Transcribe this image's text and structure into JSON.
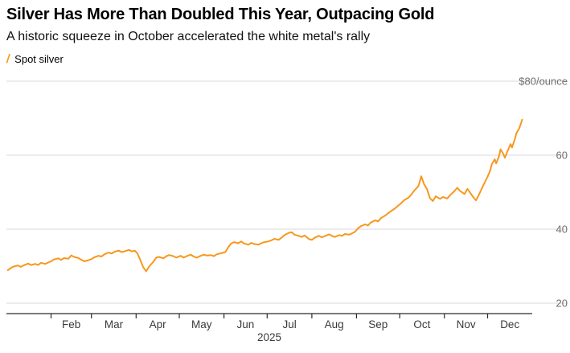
{
  "header": {
    "title": "Silver Has More Than Doubled This Year, Outpacing Gold",
    "subtitle": "A historic squeeze in October accelerated the white metal's rally"
  },
  "legend": {
    "marker": "/",
    "label": "Spot silver"
  },
  "colors": {
    "line": "#F7981D",
    "grid": "#D9D9D9",
    "axis_text": "#6E6E6E",
    "month_text": "#3A3A3A",
    "baseline": "#2B2B2B"
  },
  "chart_data": {
    "type": "line",
    "title": "Silver Has More Than Doubled This Year, Outpacing Gold",
    "subtitle": "A historic squeeze in October accelerated the white metal's rally",
    "unit": "$/ounce",
    "legend": [
      "Spot silver"
    ],
    "y_ticks": [
      {
        "value": 20,
        "label": "20"
      },
      {
        "value": 40,
        "label": "40"
      },
      {
        "value": 60,
        "label": "60"
      },
      {
        "value": 80,
        "label": "$80/ounce"
      }
    ],
    "ylim": [
      17.2,
      84
    ],
    "x_domain_days": [
      0,
      365
    ],
    "x_tick_days": [
      31,
      59,
      90,
      120,
      151,
      181,
      212,
      243,
      273,
      304,
      334
    ],
    "x_labels": [
      "Feb",
      "Mar",
      "Apr",
      "May",
      "Jun",
      "Jul",
      "Aug",
      "Sep",
      "Oct",
      "Nov",
      "Dec"
    ],
    "year_label": "2025",
    "series": [
      {
        "name": "Spot silver",
        "points": [
          [
            1,
            28.9
          ],
          [
            3,
            29.5
          ],
          [
            5,
            29.9
          ],
          [
            8,
            30.2
          ],
          [
            10,
            29.8
          ],
          [
            13,
            30.4
          ],
          [
            15,
            30.7
          ],
          [
            17,
            30.3
          ],
          [
            20,
            30.6
          ],
          [
            22,
            30.3
          ],
          [
            24,
            30.9
          ],
          [
            27,
            30.6
          ],
          [
            29,
            31.0
          ],
          [
            31,
            31.3
          ],
          [
            33,
            31.8
          ],
          [
            36,
            32.1
          ],
          [
            38,
            31.7
          ],
          [
            40,
            32.2
          ],
          [
            43,
            32.0
          ],
          [
            45,
            32.9
          ],
          [
            47,
            32.5
          ],
          [
            50,
            32.2
          ],
          [
            52,
            31.7
          ],
          [
            54,
            31.3
          ],
          [
            57,
            31.6
          ],
          [
            59,
            31.9
          ],
          [
            61,
            32.4
          ],
          [
            64,
            32.8
          ],
          [
            66,
            32.6
          ],
          [
            68,
            33.2
          ],
          [
            71,
            33.7
          ],
          [
            73,
            33.4
          ],
          [
            75,
            33.9
          ],
          [
            78,
            34.2
          ],
          [
            80,
            33.8
          ],
          [
            82,
            34.0
          ],
          [
            85,
            34.4
          ],
          [
            87,
            34.0
          ],
          [
            89,
            34.2
          ],
          [
            91,
            33.4
          ],
          [
            93,
            31.6
          ],
          [
            95,
            29.7
          ],
          [
            97,
            28.6
          ],
          [
            99,
            29.9
          ],
          [
            102,
            31.2
          ],
          [
            104,
            32.3
          ],
          [
            106,
            32.5
          ],
          [
            109,
            32.1
          ],
          [
            111,
            32.7
          ],
          [
            113,
            33.0
          ],
          [
            116,
            32.7
          ],
          [
            118,
            32.3
          ],
          [
            121,
            32.8
          ],
          [
            123,
            32.3
          ],
          [
            125,
            32.7
          ],
          [
            128,
            33.1
          ],
          [
            130,
            32.6
          ],
          [
            132,
            32.3
          ],
          [
            135,
            32.8
          ],
          [
            137,
            33.1
          ],
          [
            139,
            32.9
          ],
          [
            142,
            33.0
          ],
          [
            144,
            32.7
          ],
          [
            146,
            33.2
          ],
          [
            149,
            33.5
          ],
          [
            152,
            33.8
          ],
          [
            154,
            35.1
          ],
          [
            156,
            36.1
          ],
          [
            158,
            36.5
          ],
          [
            161,
            36.2
          ],
          [
            163,
            36.7
          ],
          [
            165,
            36.1
          ],
          [
            168,
            35.8
          ],
          [
            170,
            36.3
          ],
          [
            172,
            36.0
          ],
          [
            175,
            35.8
          ],
          [
            177,
            36.2
          ],
          [
            179,
            36.5
          ],
          [
            182,
            36.7
          ],
          [
            184,
            37.0
          ],
          [
            186,
            37.4
          ],
          [
            189,
            37.1
          ],
          [
            191,
            37.7
          ],
          [
            193,
            38.4
          ],
          [
            196,
            39.0
          ],
          [
            198,
            39.2
          ],
          [
            200,
            38.5
          ],
          [
            203,
            38.2
          ],
          [
            205,
            37.9
          ],
          [
            207,
            38.3
          ],
          [
            210,
            37.3
          ],
          [
            212,
            37.1
          ],
          [
            214,
            37.7
          ],
          [
            217,
            38.2
          ],
          [
            219,
            37.8
          ],
          [
            221,
            38.1
          ],
          [
            224,
            38.6
          ],
          [
            226,
            38.2
          ],
          [
            228,
            37.9
          ],
          [
            231,
            38.4
          ],
          [
            233,
            38.2
          ],
          [
            235,
            38.7
          ],
          [
            238,
            38.5
          ],
          [
            240,
            38.9
          ],
          [
            242,
            39.3
          ],
          [
            244,
            40.2
          ],
          [
            246,
            40.8
          ],
          [
            249,
            41.3
          ],
          [
            251,
            41.0
          ],
          [
            253,
            41.8
          ],
          [
            256,
            42.4
          ],
          [
            258,
            42.1
          ],
          [
            260,
            43.0
          ],
          [
            263,
            43.7
          ],
          [
            265,
            44.3
          ],
          [
            267,
            44.9
          ],
          [
            270,
            45.7
          ],
          [
            272,
            46.4
          ],
          [
            274,
            47.0
          ],
          [
            276,
            47.8
          ],
          [
            279,
            48.5
          ],
          [
            281,
            49.3
          ],
          [
            283,
            50.4
          ],
          [
            286,
            51.6
          ],
          [
            287,
            52.9
          ],
          [
            288,
            54.3
          ],
          [
            290,
            52.1
          ],
          [
            292,
            50.8
          ],
          [
            294,
            48.4
          ],
          [
            296,
            47.6
          ],
          [
            298,
            48.9
          ],
          [
            301,
            48.2
          ],
          [
            303,
            48.7
          ],
          [
            306,
            48.3
          ],
          [
            308,
            49.2
          ],
          [
            311,
            50.3
          ],
          [
            313,
            51.2
          ],
          [
            315,
            50.3
          ],
          [
            318,
            49.5
          ],
          [
            320,
            50.9
          ],
          [
            322,
            49.8
          ],
          [
            324,
            48.7
          ],
          [
            326,
            47.8
          ],
          [
            328,
            49.3
          ],
          [
            330,
            51.0
          ],
          [
            332,
            52.6
          ],
          [
            334,
            54.2
          ],
          [
            336,
            56.0
          ],
          [
            337,
            57.6
          ],
          [
            339,
            58.9
          ],
          [
            340,
            57.8
          ],
          [
            342,
            59.8
          ],
          [
            343,
            61.6
          ],
          [
            345,
            60.3
          ],
          [
            346,
            59.3
          ],
          [
            348,
            61.2
          ],
          [
            350,
            63.0
          ],
          [
            351,
            62.1
          ],
          [
            353,
            64.4
          ],
          [
            354,
            65.9
          ],
          [
            356,
            67.3
          ],
          [
            357,
            68.4
          ],
          [
            358,
            69.6
          ]
        ]
      }
    ]
  }
}
